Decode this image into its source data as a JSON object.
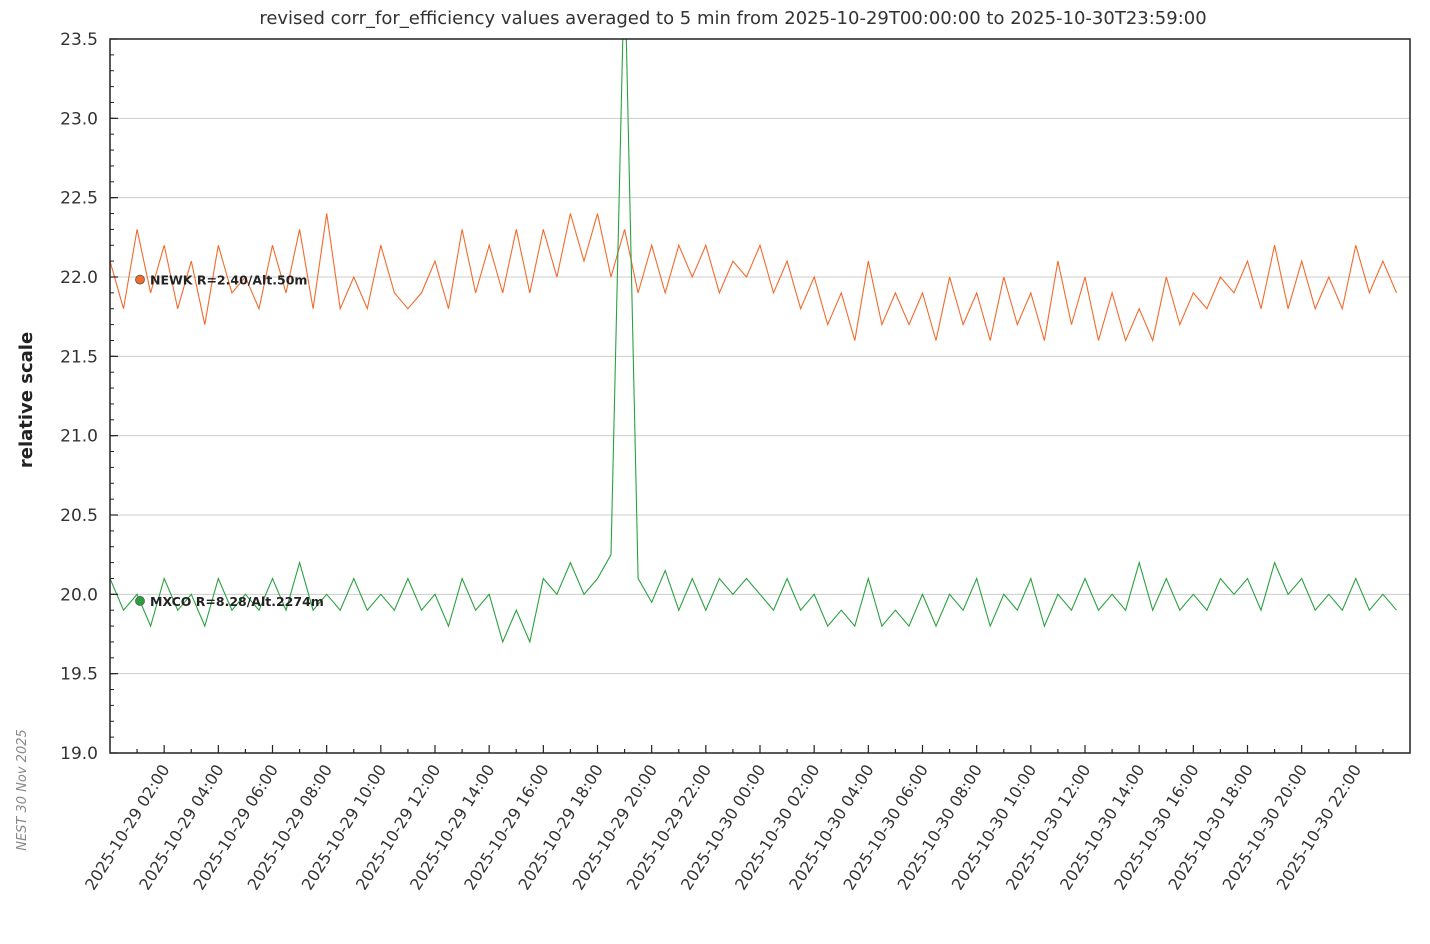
{
  "chart_data": {
    "type": "line",
    "title": "revised corr_for_efficiency values averaged to 5 min from 2025-10-29T00:00:00 to 2025-10-30T23:59:00",
    "xlabel": "",
    "ylabel": "relative scale",
    "xlim": [
      "2025-10-29T00:00",
      "2025-10-30T23:59"
    ],
    "ylim": [
      19.0,
      23.5
    ],
    "yticks": [
      "19.0",
      "19.5",
      "20.0",
      "20.5",
      "21.0",
      "21.5",
      "22.0",
      "22.5",
      "23.0",
      "23.5"
    ],
    "xticks": [
      "2025-10-29 02:00",
      "2025-10-29 04:00",
      "2025-10-29 06:00",
      "2025-10-29 08:00",
      "2025-10-29 10:00",
      "2025-10-29 12:00",
      "2025-10-29 14:00",
      "2025-10-29 16:00",
      "2025-10-29 18:00",
      "2025-10-29 20:00",
      "2025-10-29 22:00",
      "2025-10-30 00:00",
      "2025-10-30 02:00",
      "2025-10-30 04:00",
      "2025-10-30 06:00",
      "2025-10-30 08:00",
      "2025-10-30 10:00",
      "2025-10-30 12:00",
      "2025-10-30 14:00",
      "2025-10-30 16:00",
      "2025-10-30 18:00",
      "2025-10-30 20:00",
      "2025-10-30 22:00"
    ],
    "grid": "horizontal",
    "x_start": "2025-10-29T00:00",
    "step_minutes": 30,
    "series": [
      {
        "name": "NEWK R=2.40/Alt.50m",
        "color": "#f26b2c",
        "values": [
          22.1,
          21.8,
          22.3,
          21.9,
          22.2,
          21.8,
          22.1,
          21.7,
          22.2,
          21.9,
          22.0,
          21.8,
          22.2,
          21.9,
          22.3,
          21.8,
          22.4,
          21.8,
          22.0,
          21.8,
          22.2,
          21.9,
          21.8,
          21.9,
          22.1,
          21.8,
          22.3,
          21.9,
          22.2,
          21.9,
          22.3,
          21.9,
          22.3,
          22.0,
          22.4,
          22.1,
          22.4,
          22.0,
          22.3,
          21.9,
          22.2,
          21.9,
          22.2,
          22.0,
          22.2,
          21.9,
          22.1,
          22.0,
          22.2,
          21.9,
          22.1,
          21.8,
          22.0,
          21.7,
          21.9,
          21.6,
          22.1,
          21.7,
          21.9,
          21.7,
          21.9,
          21.6,
          22.0,
          21.7,
          21.9,
          21.6,
          22.0,
          21.7,
          21.9,
          21.6,
          22.1,
          21.7,
          22.0,
          21.6,
          21.9,
          21.6,
          21.8,
          21.6,
          22.0,
          21.7,
          21.9,
          21.8,
          22.0,
          21.9,
          22.1,
          21.8,
          22.2,
          21.8,
          22.1,
          21.8,
          22.0,
          21.8,
          22.2,
          21.9,
          22.1,
          21.9
        ]
      },
      {
        "name": "MXCO R=8.28/Alt.2274m",
        "color": "#2aa13f",
        "values": [
          20.1,
          19.9,
          20.0,
          19.8,
          20.1,
          19.9,
          20.0,
          19.8,
          20.1,
          19.9,
          20.0,
          19.9,
          20.1,
          19.9,
          20.2,
          19.9,
          20.0,
          19.9,
          20.1,
          19.9,
          20.0,
          19.9,
          20.1,
          19.9,
          20.0,
          19.8,
          20.1,
          19.9,
          20.0,
          19.7,
          19.9,
          19.7,
          20.1,
          20.0,
          20.2,
          20.0,
          20.1,
          20.25,
          24.0,
          20.1,
          19.95,
          20.15,
          19.9,
          20.1,
          19.9,
          20.1,
          20.0,
          20.1,
          20.0,
          19.9,
          20.1,
          19.9,
          20.0,
          19.8,
          19.9,
          19.8,
          20.1,
          19.8,
          19.9,
          19.8,
          20.0,
          19.8,
          20.0,
          19.9,
          20.1,
          19.8,
          20.0,
          19.9,
          20.1,
          19.8,
          20.0,
          19.9,
          20.1,
          19.9,
          20.0,
          19.9,
          20.2,
          19.9,
          20.1,
          19.9,
          20.0,
          19.9,
          20.1,
          20.0,
          20.1,
          19.9,
          20.2,
          20.0,
          20.1,
          19.9,
          20.0,
          19.9,
          20.1,
          19.9,
          20.0,
          19.9
        ]
      }
    ]
  },
  "stamp": "NEST  30 Nov 2025"
}
